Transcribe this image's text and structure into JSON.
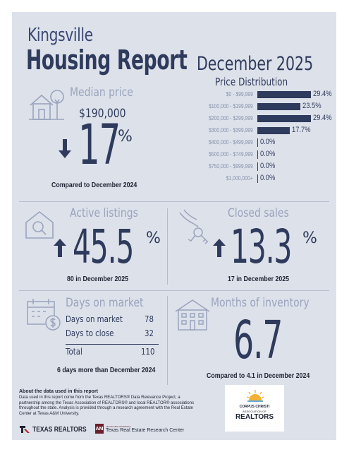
{
  "header": {
    "city": "Kingsville",
    "report_title": "Housing Report",
    "month": "December 2025"
  },
  "median_price": {
    "title": "Median price",
    "value": "$190,000",
    "change": "17",
    "change_suffix": "%",
    "direction": "down",
    "comparison": "Compared to December 2024"
  },
  "price_distribution": {
    "title": "Price Distribution"
  },
  "chart_data": {
    "type": "bar",
    "orientation": "horizontal",
    "title": "Price Distribution",
    "categories": [
      "$0 - $99,999",
      "$100,000 - $199,999",
      "$200,000 - $299,999",
      "$300,000 - $399,999",
      "$400,000 - $499,999",
      "$500,000 - $749,999",
      "$750,000 - $999,999",
      "$1,000,000+"
    ],
    "values": [
      29.4,
      23.5,
      29.4,
      17.7,
      0.0,
      0.0,
      0.0,
      0.0
    ],
    "value_labels": [
      "29.4%",
      "23.5%",
      "29.4%",
      "17.7%",
      "0.0%",
      "0.0%",
      "0.0%",
      "0.0%"
    ],
    "color": "#2f3b5c"
  },
  "active_listings": {
    "title": "Active listings",
    "change": "45.5",
    "change_suffix": "%",
    "direction": "up",
    "detail": "80 in December 2025"
  },
  "closed_sales": {
    "title": "Closed sales",
    "change": "13.3",
    "change_suffix": "%",
    "direction": "up",
    "detail": "17 in December 2025"
  },
  "days_on_market": {
    "title": "Days on market",
    "rows": [
      {
        "label": "Days on market",
        "value": "78"
      },
      {
        "label": "Days to close",
        "value": "32"
      }
    ],
    "total_label": "Total",
    "total_value": "110",
    "comparison": "6 days more than December 2024"
  },
  "months_of_inventory": {
    "title": "Months of inventory",
    "value": "6.7",
    "comparison": "Compared to 4.1 in December 2024"
  },
  "about": {
    "title": "About the data used in this report",
    "body": "Data used in this report come from the Texas REALTORS® Data Relevance Project, a partnership among the Texas Association of REALTORS® and local REALTOR® associations throughout the state. Analysis is provided through a research agreement with the Real Estate Center at Texas A&M University."
  },
  "logos": {
    "texas_realtors": "TEXAS REALTORS",
    "research_center_small": "TEXAS A&M UNIVERSITY",
    "research_center": "Texas Real Estate Research Center",
    "ccar_line1": "CORPUS CHRISTI",
    "ccar_line2": "ASSOCIATION OF",
    "ccar_line3": "REALTORS"
  },
  "colors": {
    "navy": "#2f3b5c",
    "muted": "#9aa4bd",
    "background": "#dde1ea",
    "accent_red": "#b22234",
    "maroon": "#6b1f2a"
  },
  "icons": [
    "house-tree-icon",
    "magnifier-house-icon",
    "hand-keys-icon",
    "calendar-dollar-icon",
    "building-icon",
    "down-arrow-icon",
    "up-arrow-icon",
    "sun-logo-icon"
  ]
}
